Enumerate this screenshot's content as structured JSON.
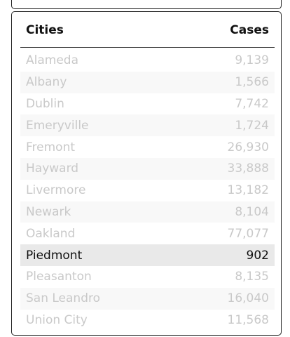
{
  "table": {
    "header": {
      "col1": "Cities",
      "col2": "Cases"
    },
    "rows": [
      {
        "city": "Alameda",
        "cases": "9,139"
      },
      {
        "city": "Albany",
        "cases": "1,566"
      },
      {
        "city": "Dublin",
        "cases": "7,742"
      },
      {
        "city": "Emeryville",
        "cases": "1,724"
      },
      {
        "city": "Fremont",
        "cases": "26,930"
      },
      {
        "city": "Hayward",
        "cases": "33,888"
      },
      {
        "city": "Livermore",
        "cases": "13,182"
      },
      {
        "city": "Newark",
        "cases": "8,104"
      },
      {
        "city": "Oakland",
        "cases": "77,077"
      },
      {
        "city": "Piedmont",
        "cases": "902"
      },
      {
        "city": "Pleasanton",
        "cases": "8,135"
      },
      {
        "city": "San Leandro",
        "cases": "16,040"
      },
      {
        "city": "Union City",
        "cases": "11,568"
      }
    ],
    "selected_city": "Piedmont"
  }
}
